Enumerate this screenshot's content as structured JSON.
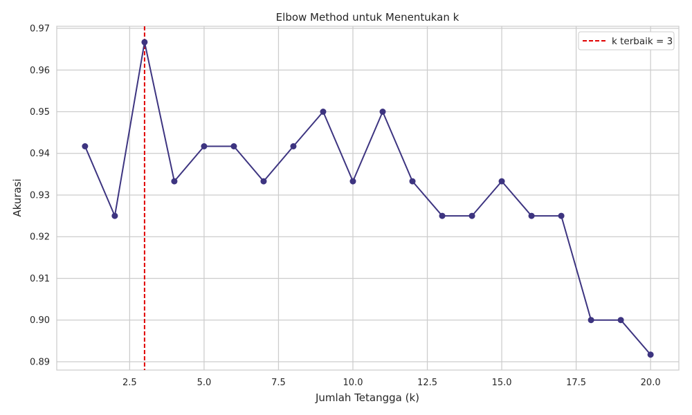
{
  "chart_data": {
    "type": "line",
    "title": "Elbow Method untuk Menentukan k",
    "xlabel": "Jumlah Tetangga (k)",
    "ylabel": "Akurasi",
    "x": [
      1,
      2,
      3,
      4,
      5,
      6,
      7,
      8,
      9,
      10,
      11,
      12,
      13,
      14,
      15,
      16,
      17,
      18,
      19,
      20
    ],
    "series": [
      {
        "values": [
          0.9417,
          0.925,
          0.9667,
          0.9333,
          0.9417,
          0.9417,
          0.9333,
          0.9417,
          0.95,
          0.9333,
          0.95,
          0.9333,
          0.925,
          0.925,
          0.9333,
          0.925,
          0.925,
          0.9,
          0.9,
          0.8917
        ],
        "color": "#3d3480",
        "marker": "circle"
      }
    ],
    "xlim": [
      0.05,
      20.95
    ],
    "ylim": [
      0.888,
      0.9705
    ],
    "xticks": [
      2.5,
      5.0,
      7.5,
      10.0,
      12.5,
      15.0,
      17.5,
      20.0
    ],
    "xtick_labels": [
      "2.5",
      "5.0",
      "7.5",
      "10.0",
      "12.5",
      "15.0",
      "17.5",
      "20.0"
    ],
    "yticks": [
      0.89,
      0.9,
      0.91,
      0.92,
      0.93,
      0.94,
      0.95,
      0.96,
      0.97
    ],
    "ytick_labels": [
      "0.89",
      "0.90",
      "0.91",
      "0.92",
      "0.93",
      "0.94",
      "0.95",
      "0.96",
      "0.97"
    ],
    "reference_line": {
      "orientation": "vertical",
      "x": 3,
      "label": "k terbaik = 3",
      "color": "#e00000",
      "style": "dashed"
    },
    "grid": true,
    "grid_color": "#cccccc",
    "legend": {
      "position": "top-right",
      "entries": [
        "k terbaik = 3"
      ]
    }
  }
}
